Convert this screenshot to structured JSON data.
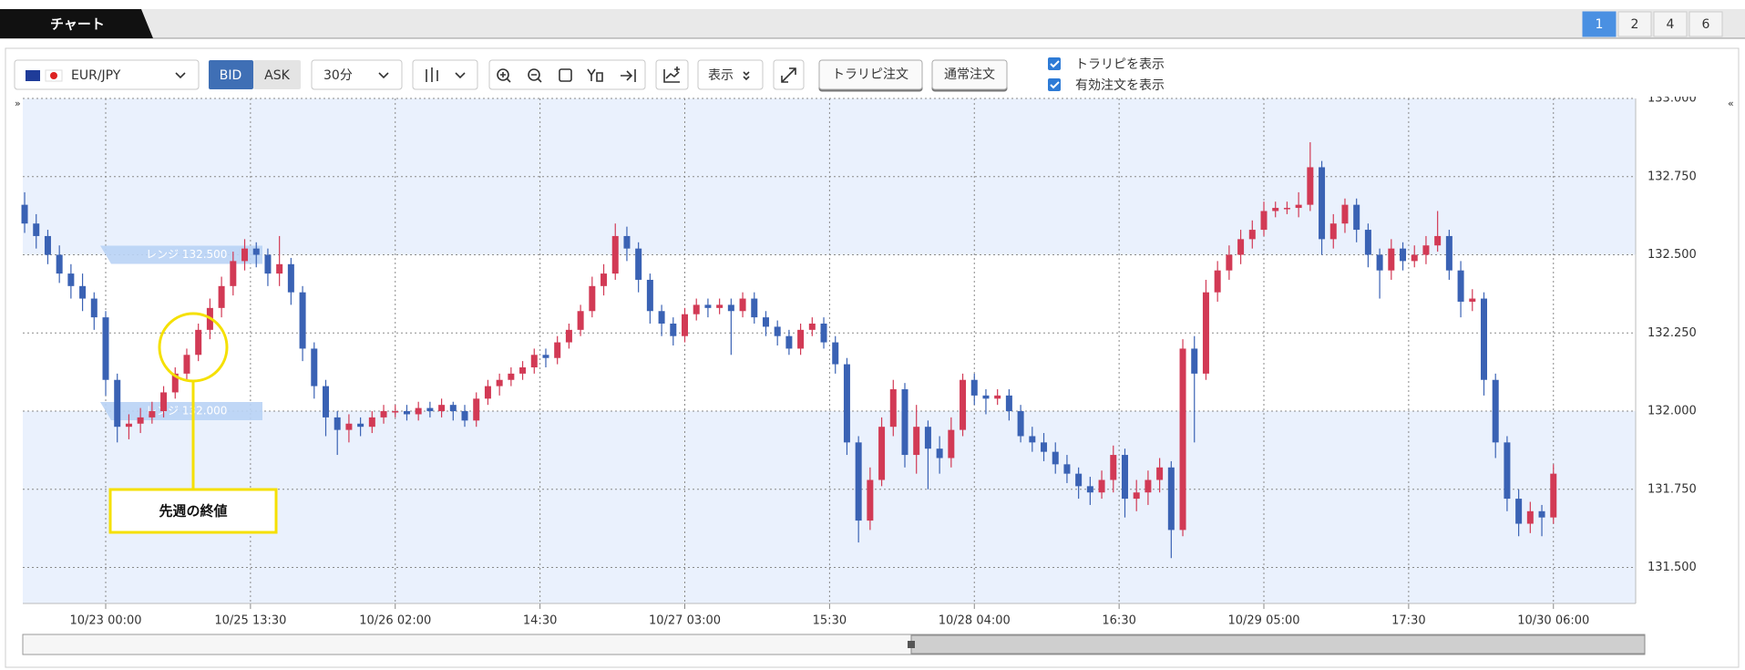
{
  "header": {
    "tab": "チャート",
    "layout_tabs": [
      "1",
      "2",
      "4",
      "6"
    ],
    "collapse_left": "»",
    "collapse_right": "«"
  },
  "toolbar": {
    "symbol": "EUR/JPY",
    "bid": "BID",
    "ask": "ASK",
    "interval": "30分",
    "display": "表示",
    "trarepi_order": "トラリピ注文",
    "normal_order": "通常注文",
    "checkboxes": [
      "トラリピを表示",
      "有効注文を表示"
    ]
  },
  "chart_data": {
    "type": "candlestick",
    "open": [
      132.66,
      132.6,
      132.56,
      132.5,
      132.44,
      132.4,
      132.36,
      132.3,
      132.1,
      131.95,
      131.96,
      131.98,
      132.0,
      132.06,
      132.12,
      132.18,
      132.26,
      132.33,
      132.4,
      132.48,
      132.52,
      132.5,
      132.44,
      132.47,
      132.38,
      132.2,
      132.08,
      131.98,
      131.94,
      131.96,
      131.95,
      131.98,
      132.0,
      132.0,
      131.99,
      132.01,
      132.0,
      132.02,
      132.0,
      131.97,
      132.04,
      132.08,
      132.1,
      132.12,
      132.14,
      132.18,
      132.17,
      132.22,
      132.26,
      132.32,
      132.4,
      132.44,
      132.56,
      132.52,
      132.42,
      132.32,
      132.28,
      132.24,
      132.31,
      132.34,
      132.33,
      132.34,
      132.32,
      132.36,
      132.3,
      132.27,
      132.24,
      132.2,
      132.26,
      132.28,
      132.22,
      132.15,
      131.9,
      131.65,
      131.78,
      131.95,
      132.07,
      131.86,
      131.95,
      131.88,
      131.85,
      131.94,
      132.1,
      132.05,
      132.04,
      132.05,
      132.0,
      131.92,
      131.9,
      131.87,
      131.83,
      131.8,
      131.76,
      131.74,
      131.78,
      131.86,
      131.72,
      131.74,
      131.78,
      131.82,
      131.62,
      132.2,
      132.12,
      132.38,
      132.45,
      132.5,
      132.55,
      132.58,
      132.64,
      132.65,
      132.65,
      132.66,
      132.78,
      132.55,
      132.6,
      132.66,
      132.58,
      132.5,
      132.45,
      132.52,
      132.48,
      132.5,
      132.53,
      132.56,
      132.45,
      132.35,
      132.36,
      132.1,
      131.9,
      131.72,
      131.64,
      131.68,
      131.66
    ],
    "high": [
      132.7,
      132.63,
      132.58,
      132.53,
      132.47,
      132.44,
      132.38,
      132.32,
      132.12,
      131.99,
      132.01,
      132.03,
      132.08,
      132.14,
      132.2,
      132.28,
      132.36,
      132.43,
      132.51,
      132.55,
      132.54,
      132.52,
      132.56,
      132.49,
      132.4,
      132.22,
      132.1,
      132.0,
      131.99,
      131.98,
      132.0,
      132.02,
      132.02,
      132.02,
      132.03,
      132.03,
      132.04,
      132.03,
      132.02,
      132.06,
      132.1,
      132.12,
      132.14,
      132.16,
      132.2,
      132.2,
      132.24,
      132.28,
      132.34,
      132.43,
      132.47,
      132.6,
      132.59,
      132.54,
      132.44,
      132.34,
      132.3,
      132.33,
      132.36,
      132.36,
      132.36,
      132.36,
      132.38,
      132.38,
      132.32,
      132.29,
      132.26,
      132.28,
      132.3,
      132.3,
      132.24,
      132.17,
      131.92,
      131.82,
      131.98,
      132.1,
      132.09,
      132.02,
      131.97,
      131.92,
      131.98,
      132.12,
      132.12,
      132.07,
      132.07,
      132.07,
      132.02,
      131.95,
      131.93,
      131.9,
      131.86,
      131.82,
      131.79,
      131.81,
      131.89,
      131.88,
      131.78,
      131.81,
      131.85,
      131.84,
      132.23,
      132.24,
      132.42,
      132.48,
      132.53,
      132.58,
      132.61,
      132.67,
      132.67,
      132.67,
      132.7,
      132.86,
      132.8,
      132.63,
      132.68,
      132.68,
      132.6,
      132.52,
      132.55,
      132.54,
      132.53,
      132.56,
      132.64,
      132.58,
      132.48,
      132.39,
      132.38,
      132.12,
      131.92,
      131.75,
      131.71,
      131.7,
      131.83
    ],
    "low": [
      132.57,
      132.52,
      132.47,
      132.41,
      132.36,
      132.32,
      132.26,
      132.05,
      131.9,
      131.91,
      131.93,
      131.96,
      131.98,
      132.04,
      132.1,
      132.16,
      132.23,
      132.3,
      132.37,
      132.45,
      132.46,
      132.4,
      132.4,
      132.34,
      132.16,
      132.04,
      131.92,
      131.86,
      131.9,
      131.92,
      131.93,
      131.96,
      131.98,
      131.97,
      131.97,
      131.98,
      131.98,
      131.97,
      131.95,
      131.95,
      132.02,
      132.05,
      132.08,
      132.1,
      132.12,
      132.14,
      132.15,
      132.2,
      132.24,
      132.3,
      132.37,
      132.42,
      132.48,
      132.38,
      132.28,
      132.24,
      132.21,
      132.22,
      132.29,
      132.3,
      132.31,
      132.18,
      132.3,
      132.28,
      132.24,
      132.21,
      132.18,
      132.18,
      132.24,
      132.2,
      132.12,
      131.86,
      131.58,
      131.62,
      131.76,
      131.92,
      131.82,
      131.8,
      131.75,
      131.8,
      131.82,
      131.92,
      132.02,
      131.99,
      132.02,
      131.97,
      131.9,
      131.87,
      131.84,
      131.8,
      131.77,
      131.72,
      131.7,
      131.72,
      131.74,
      131.66,
      131.68,
      131.7,
      131.74,
      131.53,
      131.6,
      131.9,
      132.1,
      132.35,
      132.42,
      132.47,
      132.52,
      132.56,
      132.62,
      132.63,
      132.62,
      132.64,
      132.5,
      132.52,
      132.57,
      132.54,
      132.46,
      132.36,
      132.42,
      132.45,
      132.46,
      132.47,
      132.51,
      132.42,
      132.3,
      132.32,
      132.05,
      131.85,
      131.68,
      131.6,
      131.61,
      131.6,
      131.64
    ],
    "close": [
      132.6,
      132.56,
      132.5,
      132.44,
      132.4,
      132.36,
      132.3,
      132.1,
      131.95,
      131.96,
      131.98,
      132.0,
      132.06,
      132.12,
      132.18,
      132.26,
      132.33,
      132.4,
      132.48,
      132.52,
      132.5,
      132.44,
      132.47,
      132.38,
      132.2,
      132.08,
      131.98,
      131.94,
      131.96,
      131.95,
      131.98,
      132.0,
      132.0,
      131.99,
      132.01,
      132.0,
      132.02,
      132.0,
      131.97,
      132.04,
      132.08,
      132.1,
      132.12,
      132.14,
      132.18,
      132.17,
      132.22,
      132.26,
      132.32,
      132.4,
      132.44,
      132.56,
      132.52,
      132.42,
      132.32,
      132.28,
      132.24,
      132.31,
      132.34,
      132.33,
      132.34,
      132.32,
      132.36,
      132.3,
      132.27,
      132.24,
      132.2,
      132.26,
      132.28,
      132.22,
      132.15,
      131.9,
      131.65,
      131.78,
      131.95,
      132.07,
      131.86,
      131.95,
      131.88,
      131.85,
      131.94,
      132.1,
      132.05,
      132.04,
      132.05,
      132.0,
      131.92,
      131.9,
      131.87,
      131.83,
      131.8,
      131.76,
      131.74,
      131.78,
      131.86,
      131.72,
      131.74,
      131.78,
      131.82,
      131.62,
      132.2,
      132.12,
      132.38,
      132.45,
      132.5,
      132.55,
      132.58,
      132.64,
      132.65,
      132.65,
      132.66,
      132.78,
      132.55,
      132.6,
      132.66,
      132.58,
      132.5,
      132.45,
      132.52,
      132.48,
      132.5,
      132.53,
      132.56,
      132.45,
      132.35,
      132.36,
      132.1,
      131.9,
      131.72,
      131.64,
      131.68,
      131.66,
      131.8
    ],
    "up_color": "#d23a55",
    "down_color": "#3a62b4",
    "xlim": [
      -0.16,
      139.1
    ],
    "xticks": [
      {
        "value": 7,
        "label": "10/23 00:00"
      },
      {
        "value": 19.5,
        "label": "10/25 13:30"
      },
      {
        "value": 32,
        "label": "10/26 02:00"
      },
      {
        "value": 44.5,
        "label": "14:30"
      },
      {
        "value": 57,
        "label": "10/27 03:00"
      },
      {
        "value": 69.5,
        "label": "15:30"
      },
      {
        "value": 82,
        "label": "10/28 04:00"
      },
      {
        "value": 94.5,
        "label": "16:30"
      },
      {
        "value": 107,
        "label": "10/29 05:00"
      },
      {
        "value": 119.5,
        "label": "17:30"
      },
      {
        "value": 132,
        "label": "10/30 06:00"
      }
    ],
    "ylim": [
      131.385,
      133.0
    ],
    "yticks": [
      {
        "value": 131.5,
        "label": "131.500"
      },
      {
        "value": 131.75,
        "label": "131.750"
      },
      {
        "value": 132,
        "label": "132.000"
      },
      {
        "value": 132.25,
        "label": "132.250"
      },
      {
        "value": 132.5,
        "label": "132.500"
      },
      {
        "value": 132.75,
        "label": "132.750"
      },
      {
        "value": 133,
        "label": "133.000"
      }
    ],
    "grid": true,
    "ranges": [
      {
        "value": 132.5,
        "label": "レンジ 132.500"
      },
      {
        "value": 132,
        "label": "レンジ 132.000"
      }
    ],
    "range_color": "#eaf1fd",
    "annotation": "先週の終値"
  }
}
